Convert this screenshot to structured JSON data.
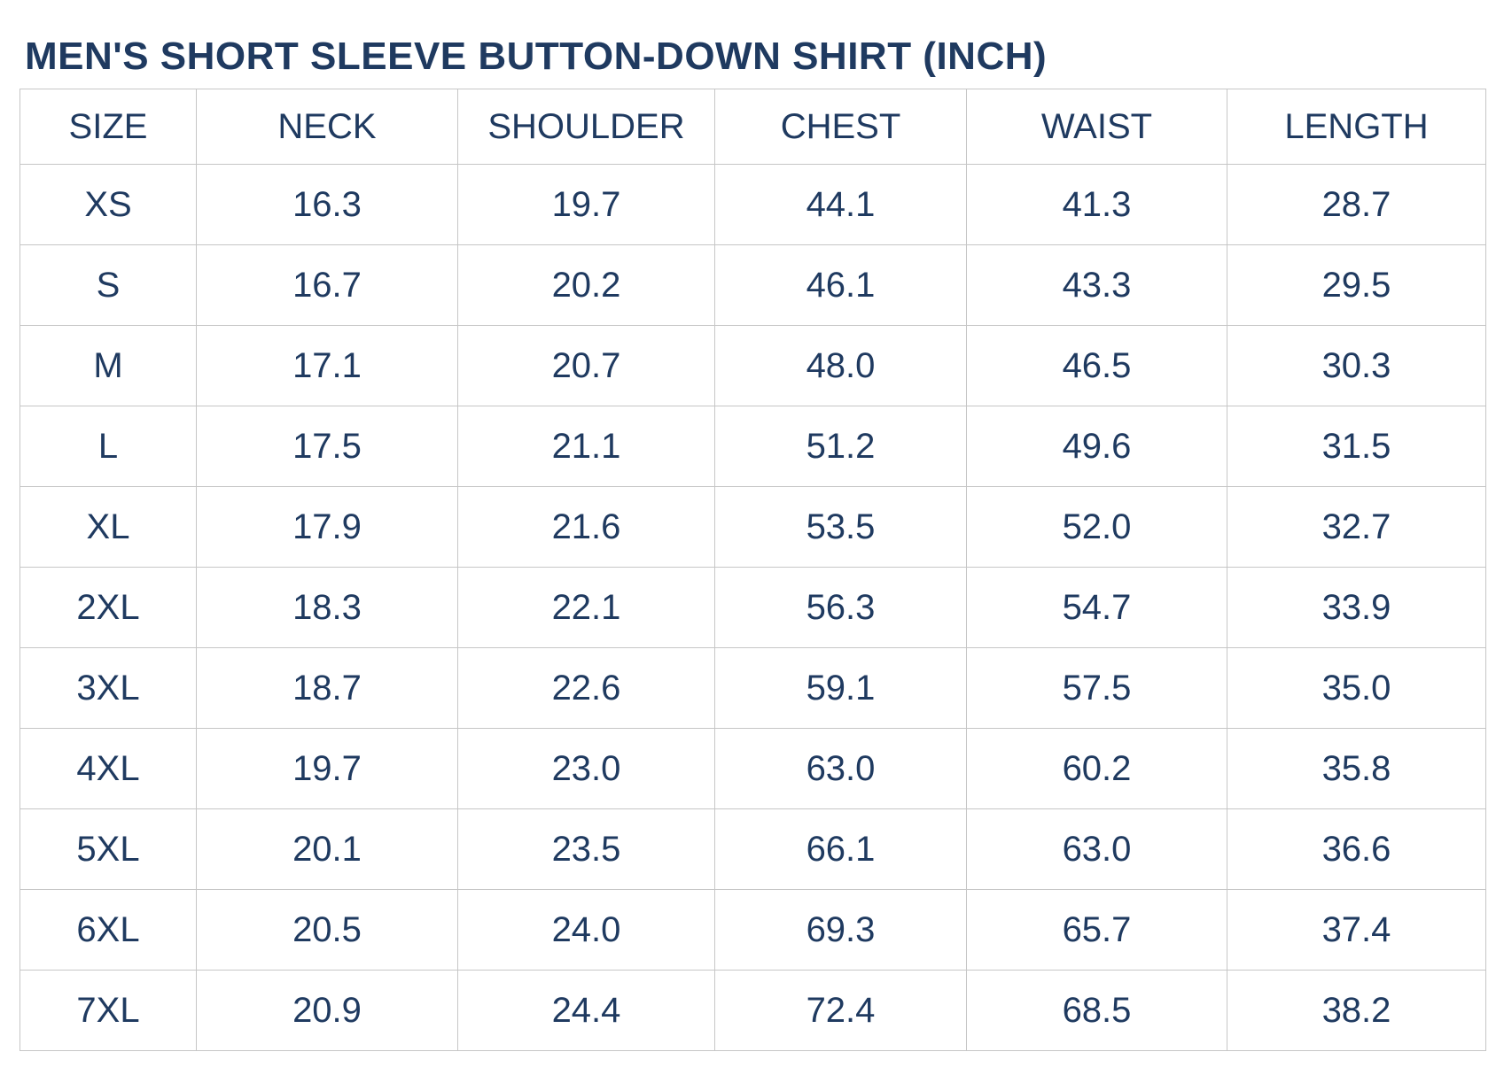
{
  "title": "MEN'S SHORT SLEEVE BUTTON-DOWN SHIRT (INCH)",
  "colors": {
    "text": "#1f3a60",
    "border": "#c6c6c6",
    "background": "#ffffff"
  },
  "table": {
    "columns": [
      "SIZE",
      "NECK",
      "SHOULDER",
      "CHEST",
      "WAIST",
      "LENGTH"
    ],
    "rows": [
      {
        "size": "XS",
        "values": [
          "16.3",
          "19.7",
          "44.1",
          "41.3",
          "28.7"
        ]
      },
      {
        "size": "S",
        "values": [
          "16.7",
          "20.2",
          "46.1",
          "43.3",
          "29.5"
        ]
      },
      {
        "size": "M",
        "values": [
          "17.1",
          "20.7",
          "48.0",
          "46.5",
          "30.3"
        ]
      },
      {
        "size": "L",
        "values": [
          "17.5",
          "21.1",
          "51.2",
          "49.6",
          "31.5"
        ]
      },
      {
        "size": "XL",
        "values": [
          "17.9",
          "21.6",
          "53.5",
          "52.0",
          "32.7"
        ]
      },
      {
        "size": "2XL",
        "values": [
          "18.3",
          "22.1",
          "56.3",
          "54.7",
          "33.9"
        ]
      },
      {
        "size": "3XL",
        "values": [
          "18.7",
          "22.6",
          "59.1",
          "57.5",
          "35.0"
        ]
      },
      {
        "size": "4XL",
        "values": [
          "19.7",
          "23.0",
          "63.0",
          "60.2",
          "35.8"
        ]
      },
      {
        "size": "5XL",
        "values": [
          "20.1",
          "23.5",
          "66.1",
          "63.0",
          "36.6"
        ]
      },
      {
        "size": "6XL",
        "values": [
          "20.5",
          "24.0",
          "69.3",
          "65.7",
          "37.4"
        ]
      },
      {
        "size": "7XL",
        "values": [
          "20.9",
          "24.4",
          "72.4",
          "68.5",
          "38.2"
        ]
      }
    ]
  },
  "chart_data": {
    "type": "table",
    "title": "MEN'S SHORT SLEEVE BUTTON-DOWN SHIRT (INCH)",
    "units": "inch",
    "columns": [
      "SIZE",
      "NECK",
      "SHOULDER",
      "CHEST",
      "WAIST",
      "LENGTH"
    ],
    "rows": [
      [
        "XS",
        16.3,
        19.7,
        44.1,
        41.3,
        28.7
      ],
      [
        "S",
        16.7,
        20.2,
        46.1,
        43.3,
        29.5
      ],
      [
        "M",
        17.1,
        20.7,
        48.0,
        46.5,
        30.3
      ],
      [
        "L",
        17.5,
        21.1,
        51.2,
        49.6,
        31.5
      ],
      [
        "XL",
        17.9,
        21.6,
        53.5,
        52.0,
        32.7
      ],
      [
        "2XL",
        18.3,
        22.1,
        56.3,
        54.7,
        33.9
      ],
      [
        "3XL",
        18.7,
        22.6,
        59.1,
        57.5,
        35.0
      ],
      [
        "4XL",
        19.7,
        23.0,
        63.0,
        60.2,
        35.8
      ],
      [
        "5XL",
        20.1,
        23.5,
        66.1,
        63.0,
        36.6
      ],
      [
        "6XL",
        20.5,
        24.0,
        69.3,
        65.7,
        37.4
      ],
      [
        "7XL",
        20.9,
        24.4,
        72.4,
        68.5,
        38.2
      ]
    ]
  }
}
